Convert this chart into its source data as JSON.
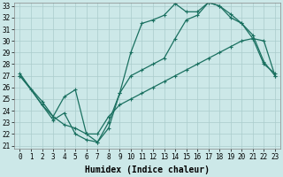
{
  "xlabel": "Humidex (Indice chaleur)",
  "background_color": "#cce8e8",
  "grid_color": "#aacccc",
  "line_color": "#1a7060",
  "line1_x": [
    0,
    1,
    2,
    3,
    4,
    5,
    6,
    7,
    8,
    9,
    10,
    11,
    12,
    13,
    14,
    15,
    16,
    17,
    18,
    19,
    20,
    21,
    22,
    23
  ],
  "line1_y": [
    27.0,
    25.8,
    24.5,
    23.5,
    22.8,
    22.5,
    22.0,
    22.0,
    23.5,
    24.5,
    25.0,
    25.5,
    26.0,
    26.5,
    27.0,
    27.5,
    28.0,
    28.5,
    29.0,
    29.5,
    30.0,
    30.2,
    30.0,
    27.0
  ],
  "line2_x": [
    0,
    2,
    3,
    4,
    5,
    6,
    7,
    8,
    9,
    10,
    11,
    12,
    13,
    14,
    15,
    16,
    17,
    18,
    19,
    20,
    21,
    22,
    23
  ],
  "line2_y": [
    27.2,
    24.5,
    23.2,
    23.8,
    22.0,
    21.5,
    21.3,
    22.5,
    25.5,
    29.0,
    31.5,
    31.8,
    32.2,
    33.2,
    32.5,
    32.5,
    33.3,
    33.0,
    32.3,
    31.5,
    30.2,
    28.0,
    27.2
  ],
  "line3_x": [
    0,
    2,
    3,
    4,
    5,
    6,
    7,
    8,
    9,
    10,
    11,
    12,
    13,
    14,
    15,
    16,
    17,
    18,
    19,
    20,
    21,
    22,
    23
  ],
  "line3_y": [
    27.0,
    24.8,
    23.5,
    25.2,
    25.8,
    22.0,
    21.3,
    23.0,
    25.5,
    27.0,
    27.5,
    28.0,
    28.5,
    30.2,
    31.8,
    32.2,
    33.3,
    33.0,
    32.0,
    31.5,
    30.5,
    28.2,
    27.0
  ],
  "yticks": [
    21,
    22,
    23,
    24,
    25,
    26,
    27,
    28,
    29,
    30,
    31,
    32,
    33
  ],
  "xticks": [
    0,
    1,
    2,
    3,
    4,
    5,
    6,
    7,
    8,
    9,
    10,
    11,
    12,
    13,
    14,
    15,
    16,
    17,
    18,
    19,
    20,
    21,
    22,
    23
  ],
  "marker": "+",
  "markersize": 3,
  "linewidth": 0.9,
  "xlabel_fontsize": 7,
  "tick_fontsize": 5.5
}
